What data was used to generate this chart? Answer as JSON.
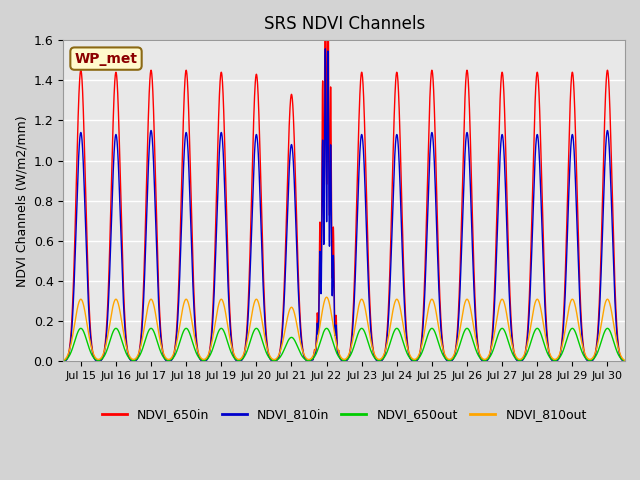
{
  "title": "SRS NDVI Channels",
  "ylabel": "NDVI Channels (W/m2/mm)",
  "ylim": [
    0.0,
    1.6
  ],
  "x_tick_labels": [
    "Jul 15",
    "Jul 16",
    "Jul 17",
    "Jul 18",
    "Jul 19",
    "Jul 20",
    "Jul 21",
    "Jul 22",
    "Jul 23",
    "Jul 24",
    "Jul 25",
    "Jul 26",
    "Jul 27",
    "Jul 28",
    "Jul 29",
    "Jul 30"
  ],
  "annotation_text": "WP_met",
  "annotation_color": "#8B0000",
  "annotation_bg": "#FFFACD",
  "annotation_border": "#8B6914",
  "colors": {
    "NDVI_650in": "#FF0000",
    "NDVI_810in": "#0000CC",
    "NDVI_650out": "#00CC00",
    "NDVI_810out": "#FFA500"
  },
  "background_color": "#D3D3D3",
  "plot_bg_color": "#E8E8E8",
  "grid_color": "#FFFFFF",
  "num_days": 16,
  "peak_650in": [
    1.45,
    1.44,
    1.45,
    1.45,
    1.44,
    1.43,
    1.33,
    1.47,
    1.44,
    1.44,
    1.45,
    1.45,
    1.44,
    1.44,
    1.44,
    1.45
  ],
  "peak_810in": [
    1.14,
    1.13,
    1.15,
    1.14,
    1.14,
    1.13,
    1.08,
    1.16,
    1.13,
    1.13,
    1.14,
    1.14,
    1.13,
    1.13,
    1.13,
    1.15
  ],
  "peak_650out": [
    0.165,
    0.165,
    0.165,
    0.165,
    0.165,
    0.165,
    0.12,
    0.165,
    0.165,
    0.165,
    0.165,
    0.165,
    0.165,
    0.165,
    0.165,
    0.165
  ],
  "peak_810out": [
    0.31,
    0.31,
    0.31,
    0.31,
    0.31,
    0.31,
    0.27,
    0.32,
    0.31,
    0.31,
    0.31,
    0.31,
    0.31,
    0.31,
    0.31,
    0.31
  ],
  "anomaly_day": 7,
  "ytick_labels": [
    "0.0",
    "0.2",
    "0.4",
    "0.6",
    "0.8",
    "1.0",
    "1.2",
    "1.4",
    "1.6"
  ]
}
